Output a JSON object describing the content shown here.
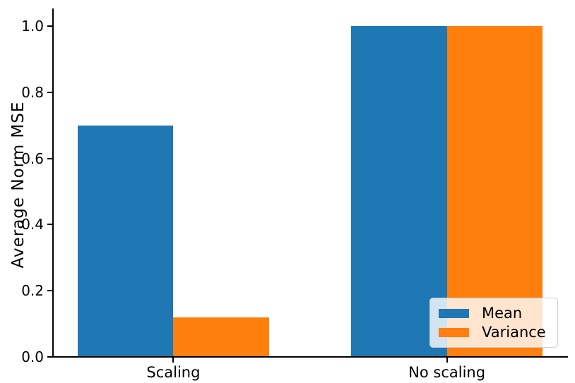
{
  "chart_data": {
    "type": "bar",
    "title": "",
    "xlabel": "",
    "ylabel": "Average Norm MSE",
    "categories": [
      "Scaling",
      "No scaling"
    ],
    "series": [
      {
        "name": "Mean",
        "color": "#1f77b4",
        "values": [
          0.7,
          1.0
        ]
      },
      {
        "name": "Variance",
        "color": "#ff7f0e",
        "values": [
          0.12,
          1.0
        ]
      }
    ],
    "yticks": [
      {
        "value": 0.0,
        "label": "0.0"
      },
      {
        "value": 0.2,
        "label": "0.2"
      },
      {
        "value": 0.4,
        "label": "0.4"
      },
      {
        "value": 0.6,
        "label": "0.6"
      },
      {
        "value": 0.8,
        "label": "0.8"
      },
      {
        "value": 1.0,
        "label": "1.0"
      }
    ],
    "ylim": [
      0,
      1.053
    ],
    "bar_width": 0.35,
    "grid": false,
    "legend": {
      "position": "lower right",
      "entries": [
        "Mean",
        "Variance"
      ]
    },
    "colors": {
      "axis": "#000000",
      "background": "#ffffff"
    }
  }
}
